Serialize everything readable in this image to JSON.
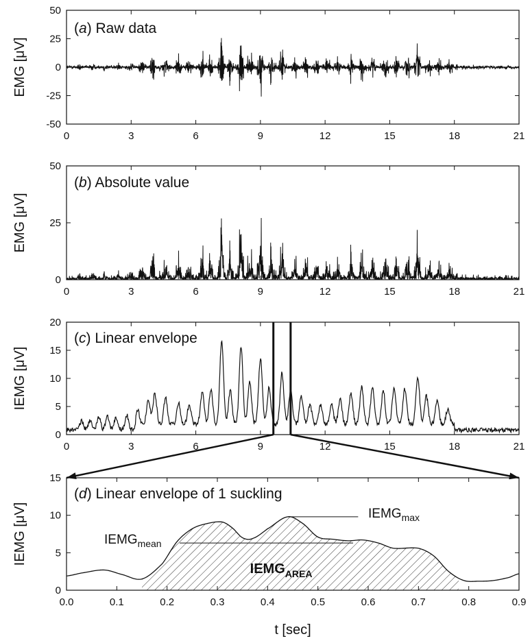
{
  "chart_data": [
    {
      "panel": "a",
      "type": "line",
      "title_letter": "a",
      "title": "Raw data",
      "ylabel": "EMG [μV]",
      "xlim": [
        0,
        21
      ],
      "ylim": [
        -50,
        50
      ],
      "xticks": [
        0,
        3,
        6,
        9,
        12,
        15,
        18,
        21
      ],
      "yticks": [
        -50,
        -25,
        0,
        25,
        50
      ],
      "bursts": [
        {
          "t": 0.6,
          "amp": 5
        },
        {
          "t": 1.2,
          "amp": 6
        },
        {
          "t": 1.8,
          "amp": 7
        },
        {
          "t": 2.4,
          "amp": 6
        },
        {
          "t": 3.0,
          "amp": 8
        },
        {
          "t": 3.5,
          "amp": 10
        },
        {
          "t": 4.0,
          "amp": 22
        },
        {
          "t": 4.6,
          "amp": 17
        },
        {
          "t": 5.2,
          "amp": 14
        },
        {
          "t": 5.7,
          "amp": 12
        },
        {
          "t": 6.3,
          "amp": 18
        },
        {
          "t": 6.7,
          "amp": 17
        },
        {
          "t": 7.2,
          "amp": 45
        },
        {
          "t": 7.6,
          "amp": 30
        },
        {
          "t": 8.1,
          "amp": 45
        },
        {
          "t": 8.5,
          "amp": 30
        },
        {
          "t": 9.0,
          "amp": 37
        },
        {
          "t": 9.5,
          "amp": 22
        },
        {
          "t": 10.0,
          "amp": 28
        },
        {
          "t": 10.6,
          "amp": 16
        },
        {
          "t": 11.1,
          "amp": 14
        },
        {
          "t": 11.6,
          "amp": 13
        },
        {
          "t": 12.1,
          "amp": 11
        },
        {
          "t": 12.6,
          "amp": 15
        },
        {
          "t": 13.2,
          "amp": 16
        },
        {
          "t": 13.7,
          "amp": 22
        },
        {
          "t": 14.2,
          "amp": 18
        },
        {
          "t": 14.8,
          "amp": 19
        },
        {
          "t": 15.3,
          "amp": 17
        },
        {
          "t": 15.8,
          "amp": 19
        },
        {
          "t": 16.3,
          "amp": 33
        },
        {
          "t": 16.8,
          "amp": 14
        },
        {
          "t": 17.3,
          "amp": 12
        },
        {
          "t": 17.8,
          "amp": 10
        }
      ]
    },
    {
      "panel": "b",
      "type": "line",
      "title_letter": "b",
      "title": "Absolute value",
      "ylabel": "EMG [μV]",
      "xlim": [
        0,
        21
      ],
      "ylim": [
        0,
        50
      ],
      "xticks": [
        0,
        3,
        6,
        9,
        12,
        15,
        18,
        21
      ],
      "yticks": [
        0,
        25,
        50
      ]
    },
    {
      "panel": "c",
      "type": "line",
      "title_letter": "c",
      "title": "Linear envelope",
      "ylabel": "IEMG [μV]",
      "xlim": [
        0,
        21
      ],
      "ylim": [
        0,
        20
      ],
      "xticks": [
        0,
        3,
        6,
        9,
        12,
        15,
        18,
        21
      ],
      "yticks": [
        0,
        5,
        10,
        15,
        20
      ],
      "window": [
        9.6,
        10.4
      ],
      "bursts": [
        {
          "t": 0.7,
          "amp": 1.6
        },
        {
          "t": 1.1,
          "amp": 1.8
        },
        {
          "t": 1.5,
          "amp": 2.2
        },
        {
          "t": 1.9,
          "amp": 2.4
        },
        {
          "t": 2.3,
          "amp": 2.2
        },
        {
          "t": 2.8,
          "amp": 2.6
        },
        {
          "t": 3.3,
          "amp": 2.6
        },
        {
          "t": 3.8,
          "amp": 4.5
        },
        {
          "t": 4.1,
          "amp": 5.5
        },
        {
          "t": 4.6,
          "amp": 4.8
        },
        {
          "t": 5.2,
          "amp": 3.8
        },
        {
          "t": 5.7,
          "amp": 3.6
        },
        {
          "t": 6.3,
          "amp": 5.8
        },
        {
          "t": 6.7,
          "amp": 6.2
        },
        {
          "t": 7.2,
          "amp": 15.0
        },
        {
          "t": 7.6,
          "amp": 6.0
        },
        {
          "t": 8.1,
          "amp": 13.8
        },
        {
          "t": 8.5,
          "amp": 7.5
        },
        {
          "t": 9.0,
          "amp": 11.8
        },
        {
          "t": 9.4,
          "amp": 6.5
        },
        {
          "t": 10.0,
          "amp": 9.2
        },
        {
          "t": 10.4,
          "amp": 6.0
        },
        {
          "t": 10.9,
          "amp": 5.0
        },
        {
          "t": 11.3,
          "amp": 3.5
        },
        {
          "t": 11.8,
          "amp": 3.5
        },
        {
          "t": 12.3,
          "amp": 3.5
        },
        {
          "t": 12.7,
          "amp": 4.5
        },
        {
          "t": 13.2,
          "amp": 5.5
        },
        {
          "t": 13.7,
          "amp": 6.6
        },
        {
          "t": 14.2,
          "amp": 6.5
        },
        {
          "t": 14.7,
          "amp": 6.0
        },
        {
          "t": 15.2,
          "amp": 6.6
        },
        {
          "t": 15.7,
          "amp": 6.4
        },
        {
          "t": 16.3,
          "amp": 8.5
        },
        {
          "t": 16.7,
          "amp": 5.0
        },
        {
          "t": 17.2,
          "amp": 4.0
        },
        {
          "t": 17.7,
          "amp": 2.8
        }
      ]
    },
    {
      "panel": "d",
      "type": "line",
      "title_letter": "d",
      "title": "Linear envelope of 1 suckling",
      "ylabel": "IEMG [μV]",
      "xlabel": "t [sec]",
      "xlim": [
        0,
        0.9
      ],
      "ylim": [
        0,
        15
      ],
      "xticks": [
        "0.0",
        "0.1",
        "0.2",
        "0.3",
        "0.4",
        "0.5",
        "0.6",
        "0.7",
        "0.8",
        "0.9"
      ],
      "yticks": [
        0,
        5,
        10,
        15
      ],
      "x": [
        0.0,
        0.03,
        0.075,
        0.11,
        0.15,
        0.19,
        0.22,
        0.25,
        0.28,
        0.31,
        0.33,
        0.35,
        0.37,
        0.4,
        0.44,
        0.47,
        0.5,
        0.53,
        0.56,
        0.59,
        0.62,
        0.65,
        0.7,
        0.73,
        0.76,
        0.79,
        0.82,
        0.85,
        0.88,
        0.9
      ],
      "y": [
        1.9,
        2.3,
        2.7,
        2.1,
        1.5,
        3.5,
        6.5,
        8.2,
        8.9,
        9.1,
        8.3,
        7.0,
        6.9,
        8.2,
        9.8,
        8.9,
        7.1,
        6.8,
        6.6,
        6.7,
        6.3,
        5.6,
        5.6,
        4.6,
        2.5,
        1.3,
        1.2,
        1.3,
        1.7,
        2.2
      ],
      "area_range": [
        0.15,
        0.78
      ],
      "annotations": {
        "max": {
          "base": "IEMG",
          "sub": "max",
          "value": 9.8
        },
        "mean": {
          "base": "IEMG",
          "sub": "mean",
          "value": 6.3
        },
        "area": {
          "base": "IEMG",
          "sub": "AREA"
        }
      }
    }
  ]
}
